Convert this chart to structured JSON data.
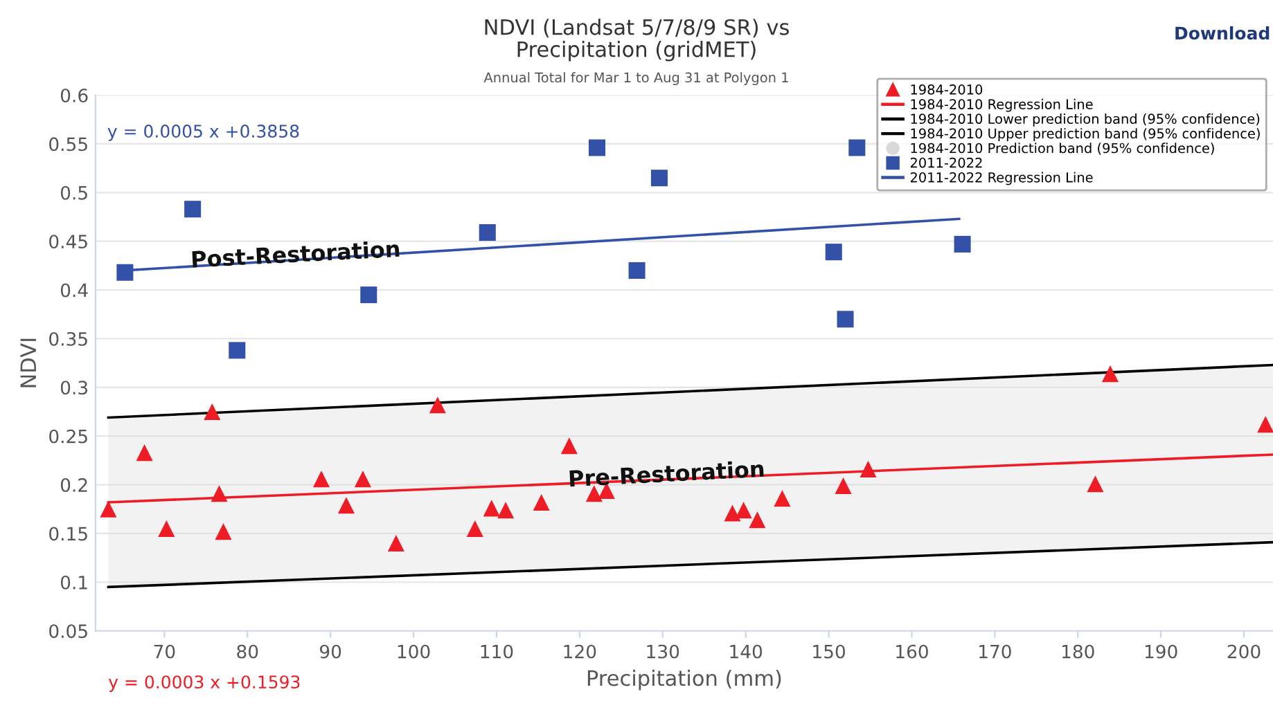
{
  "chart_data": {
    "type": "scatter",
    "title": "NDVI (Landsat 5/7/8/9 SR) vs\nPrecipitation (gridMET)",
    "subtitle": "Annual Total for Mar 1 to Aug 31 at Polygon 1",
    "xlabel": "Precipitation (mm)",
    "ylabel": "NDVI",
    "xlim": [
      61.7,
      203.5
    ],
    "ylim": [
      0.05,
      0.6
    ],
    "xticks": [
      70,
      80,
      90,
      100,
      110,
      120,
      130,
      140,
      150,
      160,
      170,
      180,
      190,
      200
    ],
    "yticks": [
      0.05,
      0.1,
      0.15,
      0.2,
      0.25,
      0.3,
      0.35,
      0.4,
      0.45,
      0.5,
      0.55,
      0.6
    ],
    "grid": "y",
    "legend": "top right",
    "series": [
      {
        "name": "1984-2010",
        "marker": "triangle",
        "color": "#ee1c25",
        "x": [
          63.25,
          67.6,
          70.25,
          75.75,
          76.6,
          77.1,
          88.9,
          91.9,
          93.9,
          97.9,
          102.9,
          107.4,
          109.4,
          111.1,
          115.4,
          118.75,
          121.75,
          123.25,
          138.4,
          139.75,
          141.4,
          144.4,
          151.75,
          154.75,
          182.1,
          183.9,
          202.6
        ],
        "values": [
          0.175,
          0.233,
          0.155,
          0.275,
          0.191,
          0.152,
          0.206,
          0.179,
          0.206,
          0.14,
          0.282,
          0.155,
          0.176,
          0.174,
          0.182,
          0.24,
          0.191,
          0.194,
          0.171,
          0.174,
          0.164,
          0.186,
          0.199,
          0.216,
          0.201,
          0.314,
          0.262
        ]
      },
      {
        "name": "1984-2010 Regression Line",
        "type": "line",
        "color": "#ee1c25",
        "x": [
          63.25,
          203.5
        ],
        "values": [
          0.182,
          0.231
        ],
        "lower": [
          0.095,
          0.141
        ],
        "upper": [
          0.269,
          0.323
        ]
      },
      {
        "name": "1984-2010 Lower prediction band (95% confidence)",
        "type": "line",
        "color": "#000000",
        "x": [
          63.25,
          203.5
        ],
        "values": [
          0.095,
          0.141
        ]
      },
      {
        "name": "1984-2010 Upper prediction band (95% confidence)",
        "type": "line",
        "color": "#000000",
        "x": [
          63.25,
          203.5
        ],
        "values": [
          0.269,
          0.323
        ]
      },
      {
        "name": "1984-2010 Prediction band (95% confidence)",
        "type": "area",
        "color": "#d9d9d9"
      },
      {
        "name": "2011-2022",
        "marker": "square",
        "color": "#3451a8",
        "x": [
          65.25,
          73.4,
          78.75,
          94.6,
          108.9,
          122.1,
          126.9,
          129.6,
          150.6,
          152.0,
          153.4,
          166.1
        ],
        "values": [
          0.418,
          0.483,
          0.338,
          0.395,
          0.459,
          0.546,
          0.42,
          0.515,
          0.439,
          0.37,
          0.546,
          0.447
        ]
      },
      {
        "name": "2011-2022 Regression Line",
        "type": "line",
        "color": "#3451a8",
        "x": [
          65.25,
          165.7
        ],
        "values": [
          0.42,
          0.473
        ]
      }
    ],
    "annotations": [
      "y = 0.0005 x +0.3858",
      "y = 0.0003 x +0.1593",
      "Post-Restoration",
      "Pre-Restoration",
      "Download"
    ]
  }
}
